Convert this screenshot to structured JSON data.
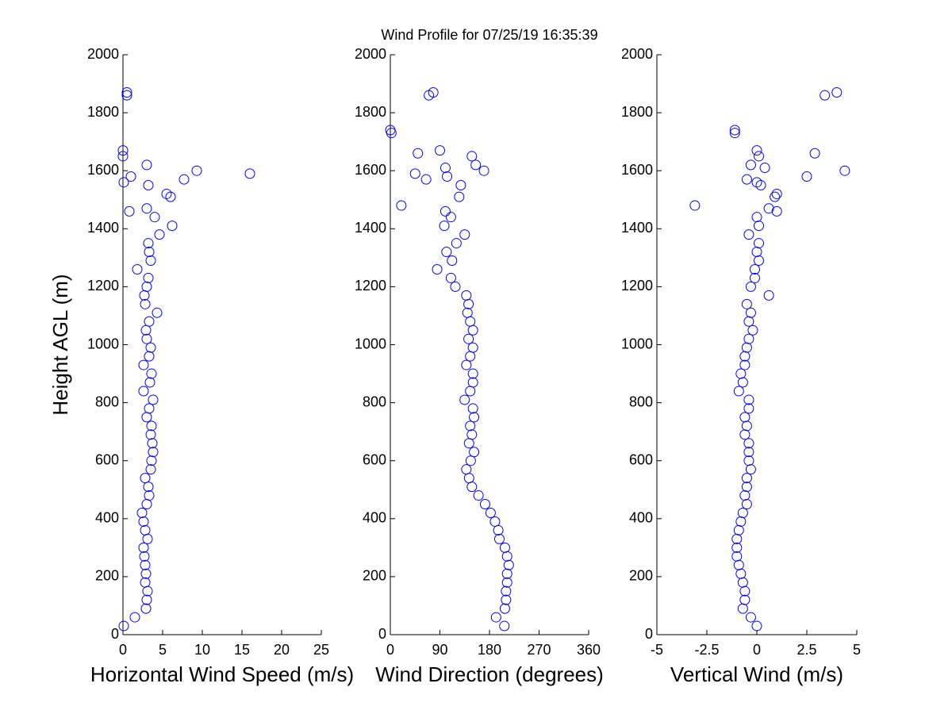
{
  "title": "Wind Profile for  07/25/19 16:35:39",
  "chart_data": [
    {
      "type": "scatter",
      "xlabel": "Horizontal Wind Speed (m/s)",
      "ylabel": "Height AGL (m)",
      "color": "#0000ff",
      "xlim": [
        0,
        25
      ],
      "xticks": [
        0,
        5,
        10,
        15,
        20,
        25
      ],
      "ylim": [
        0,
        2000
      ],
      "yticks": [
        0,
        200,
        400,
        600,
        800,
        1000,
        1200,
        1400,
        1600,
        1800,
        2000
      ],
      "x": [
        0.1,
        1.5,
        2.9,
        3.0,
        3.1,
        2.8,
        2.9,
        2.8,
        2.7,
        2.6,
        3.1,
        2.8,
        2.6,
        2.4,
        3.0,
        3.3,
        3.2,
        2.8,
        3.5,
        3.6,
        3.8,
        3.7,
        3.5,
        3.6,
        3.0,
        3.3,
        3.8,
        2.6,
        3.4,
        3.6,
        2.6,
        3.3,
        3.5,
        3.0,
        2.9,
        3.3,
        4.3,
        2.8,
        2.7,
        3.0,
        3.2,
        1.8,
        3.5,
        3.3,
        3.2,
        4.6,
        6.2,
        4.0,
        0.8,
        3,
        6,
        5.5,
        3.2,
        0.1,
        7.7,
        1,
        16,
        9.3,
        3,
        0,
        0,
        0.5,
        0.5
      ],
      "y": [
        30,
        60,
        90,
        120,
        150,
        180,
        210,
        240,
        270,
        300,
        330,
        360,
        390,
        420,
        450,
        480,
        510,
        540,
        570,
        600,
        630,
        660,
        690,
        720,
        750,
        780,
        810,
        840,
        870,
        900,
        930,
        960,
        990,
        1020,
        1050,
        1080,
        1110,
        1140,
        1170,
        1200,
        1230,
        1260,
        1290,
        1320,
        1350,
        1380,
        1410,
        1440,
        1460,
        1470,
        1510,
        1520,
        1550,
        1560,
        1570,
        1580,
        1590,
        1600,
        1620,
        1650,
        1670,
        1860,
        1870
      ]
    },
    {
      "type": "scatter",
      "xlabel": "Wind Direction (degrees)",
      "color": "#0000ff",
      "xlim": [
        0,
        360
      ],
      "xticks": [
        0,
        90,
        180,
        270,
        360
      ],
      "ylim": [
        0,
        2000
      ],
      "yticks": [
        0,
        200,
        400,
        600,
        800,
        1000,
        1200,
        1400,
        1600,
        1800,
        2000
      ],
      "x": [
        207,
        192,
        208,
        210,
        210,
        212,
        212,
        215,
        212,
        208,
        198,
        196,
        190,
        182,
        172,
        160,
        148,
        143,
        138,
        146,
        152,
        143,
        148,
        145,
        152,
        150,
        135,
        145,
        150,
        150,
        138,
        145,
        150,
        142,
        150,
        145,
        140,
        142,
        138,
        118,
        110,
        85,
        112,
        102,
        120,
        135,
        98,
        110,
        100,
        20,
        125,
        128,
        65,
        103,
        45,
        170,
        100,
        155,
        148,
        50,
        90,
        2,
        0,
        70,
        78
      ],
      "y": [
        30,
        60,
        90,
        120,
        150,
        180,
        210,
        240,
        270,
        300,
        330,
        360,
        390,
        420,
        450,
        480,
        510,
        540,
        570,
        600,
        630,
        660,
        690,
        720,
        750,
        780,
        810,
        840,
        870,
        900,
        930,
        960,
        990,
        1020,
        1050,
        1080,
        1110,
        1140,
        1170,
        1200,
        1230,
        1260,
        1290,
        1320,
        1350,
        1380,
        1410,
        1440,
        1460,
        1480,
        1510,
        1550,
        1570,
        1580,
        1590,
        1600,
        1610,
        1620,
        1650,
        1660,
        1670,
        1730,
        1740,
        1860,
        1870
      ]
    },
    {
      "type": "scatter",
      "xlabel": "Vertical Wind (m/s)",
      "color": "#0000ff",
      "xlim": [
        -5,
        5
      ],
      "xticks": [
        -5,
        -2.5,
        0,
        2.5,
        5
      ],
      "ylim": [
        0,
        2000
      ],
      "yticks": [
        0,
        200,
        400,
        600,
        800,
        1000,
        1200,
        1400,
        1600,
        1800,
        2000
      ],
      "x": [
        0.0,
        -0.3,
        -0.7,
        -0.6,
        -0.6,
        -0.7,
        -0.8,
        -0.9,
        -1.0,
        -1.0,
        -1.0,
        -0.9,
        -0.8,
        -0.7,
        -0.5,
        -0.6,
        -0.5,
        -0.5,
        -0.3,
        -0.4,
        -0.4,
        -0.4,
        -0.6,
        -0.5,
        -0.6,
        -0.4,
        -0.4,
        -0.9,
        -0.7,
        -0.8,
        -0.6,
        -0.6,
        -0.5,
        -0.4,
        -0.2,
        -0.4,
        -0.3,
        -0.5,
        0.6,
        -0.3,
        -0.1,
        -0.1,
        0.1,
        0.0,
        0.1,
        -0.4,
        0.1,
        0.0,
        1,
        0.6,
        -3.1,
        0.9,
        1,
        0.2,
        0,
        -0.5,
        2.5,
        4.4,
        0.4,
        -0.3,
        0.1,
        2.9,
        0,
        -1.1,
        -1.1,
        3.4,
        4
      ],
      "y": [
        30,
        60,
        90,
        120,
        150,
        180,
        210,
        240,
        270,
        300,
        330,
        360,
        390,
        420,
        450,
        480,
        510,
        540,
        570,
        600,
        630,
        660,
        690,
        720,
        750,
        780,
        810,
        840,
        870,
        900,
        930,
        960,
        990,
        1020,
        1050,
        1080,
        1110,
        1140,
        1170,
        1200,
        1230,
        1260,
        1290,
        1320,
        1350,
        1380,
        1410,
        1440,
        1460,
        1470,
        1480,
        1510,
        1520,
        1550,
        1560,
        1570,
        1580,
        1600,
        1610,
        1620,
        1650,
        1660,
        1670,
        1730,
        1740,
        1860,
        1870
      ]
    }
  ]
}
